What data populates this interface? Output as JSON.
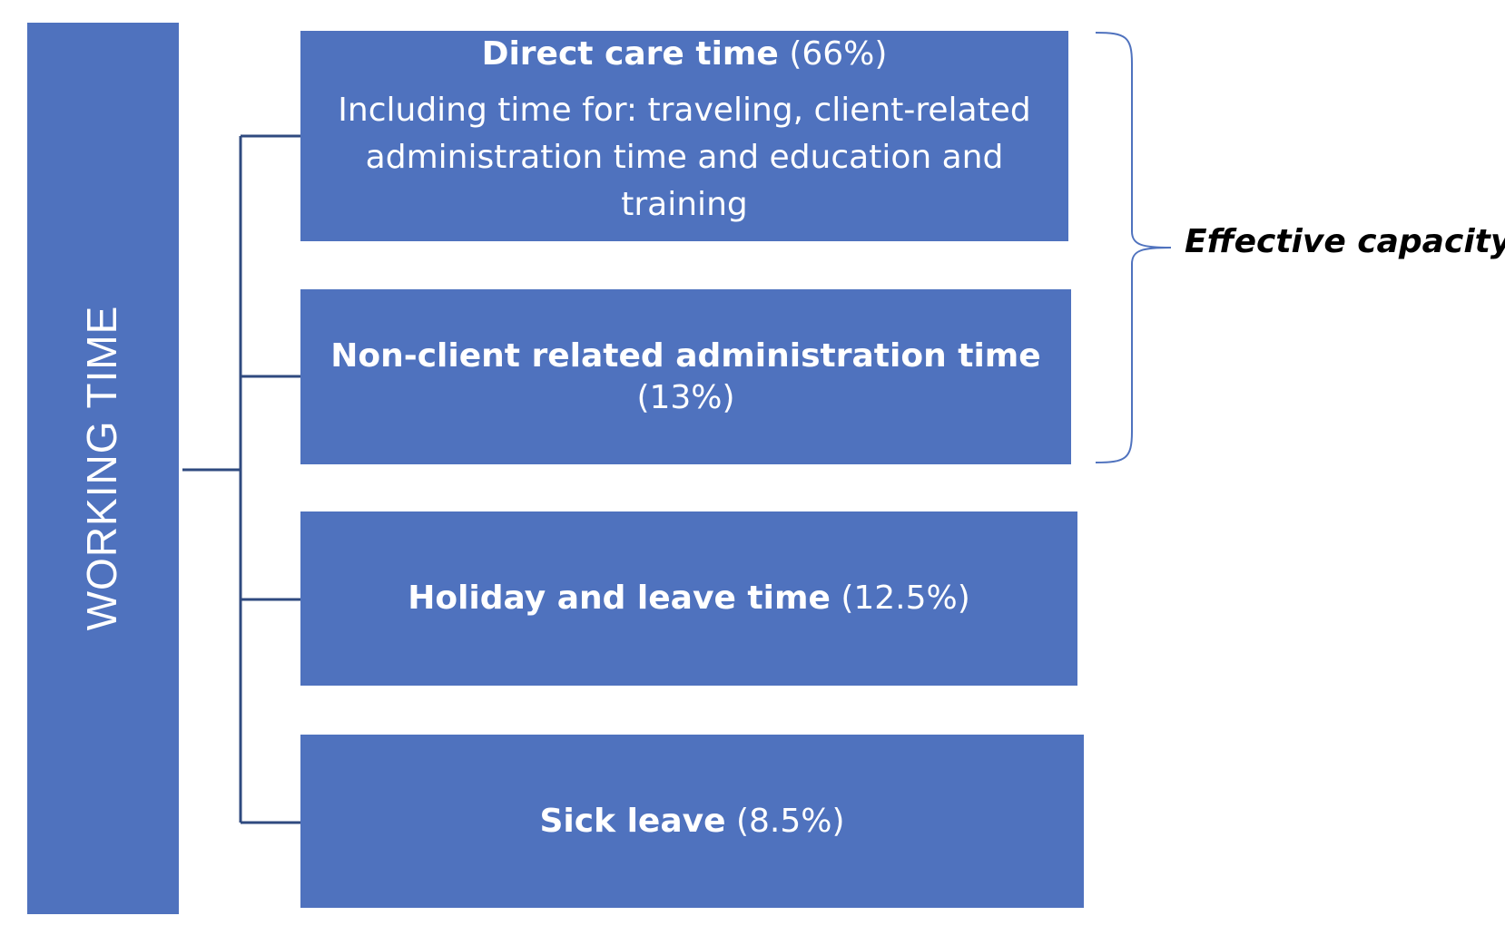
{
  "diagram": {
    "root": {
      "label": "WORKING TIME",
      "color": "#4F72BE"
    },
    "nodes": [
      {
        "title": "Direct care time",
        "value": "(66%)",
        "detail": "Including time for: traveling, client-related administration time and education and training"
      },
      {
        "title": "Non-client related administration time",
        "value": "(13%)"
      },
      {
        "title": "Holiday and leave time",
        "value": "(12.5%)"
      },
      {
        "title": "Sick leave",
        "value": "(8.5%)"
      }
    ],
    "brace_label": "Effective capacity",
    "connector_color": "#2F4A7F",
    "brace_color": "#4F72BE"
  }
}
